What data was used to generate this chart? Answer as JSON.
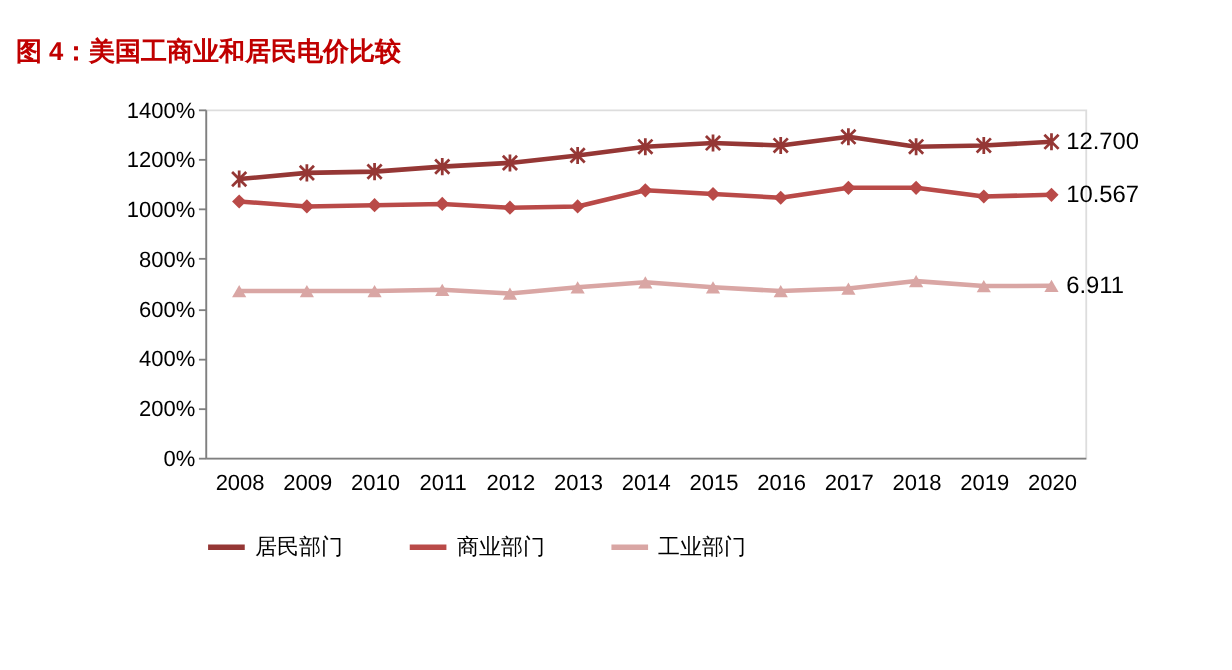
{
  "chart_data": {
    "type": "line",
    "title": "图 4：美国工商业和居民电价比较",
    "categories": [
      "2008",
      "2009",
      "2010",
      "2011",
      "2012",
      "2013",
      "2014",
      "2015",
      "2016",
      "2017",
      "2018",
      "2019",
      "2020"
    ],
    "series": [
      {
        "name": "居民部门",
        "color": "#953735",
        "marker": "cross",
        "values": [
          11.2,
          11.45,
          11.5,
          11.7,
          11.85,
          12.15,
          12.5,
          12.65,
          12.55,
          12.9,
          12.5,
          12.55,
          12.7
        ],
        "value_labels": [
          null,
          null,
          null,
          null,
          null,
          null,
          null,
          null,
          null,
          null,
          null,
          null,
          "12.700"
        ]
      },
      {
        "name": "商业部门",
        "color": "#b94a48",
        "marker": "diamond",
        "values": [
          10.3,
          10.1,
          10.15,
          10.2,
          10.05,
          10.1,
          10.75,
          10.6,
          10.45,
          10.85,
          10.85,
          10.5,
          10.567
        ],
        "value_labels": [
          null,
          null,
          null,
          null,
          null,
          null,
          null,
          null,
          null,
          null,
          null,
          null,
          "10.567"
        ]
      },
      {
        "name": "工业部门",
        "color": "#d9a6a4",
        "marker": "triangle",
        "values": [
          6.7,
          6.7,
          6.7,
          6.75,
          6.6,
          6.85,
          7.05,
          6.85,
          6.7,
          6.8,
          7.1,
          6.9,
          6.911
        ],
        "value_labels": [
          null,
          null,
          null,
          null,
          null,
          null,
          null,
          null,
          null,
          null,
          null,
          null,
          "6.911"
        ]
      }
    ],
    "ylim": [
      0,
      14
    ],
    "yticks": [
      {
        "value": 0,
        "label": "0%"
      },
      {
        "value": 2,
        "label": "200%"
      },
      {
        "value": 4,
        "label": "400%"
      },
      {
        "value": 6,
        "label": "600%"
      },
      {
        "value": 8,
        "label": "800%"
      },
      {
        "value": 10,
        "label": "1000%"
      },
      {
        "value": 12,
        "label": "1200%"
      },
      {
        "value": 14,
        "label": "1400%"
      }
    ],
    "grid": false,
    "legend": "bottom"
  }
}
